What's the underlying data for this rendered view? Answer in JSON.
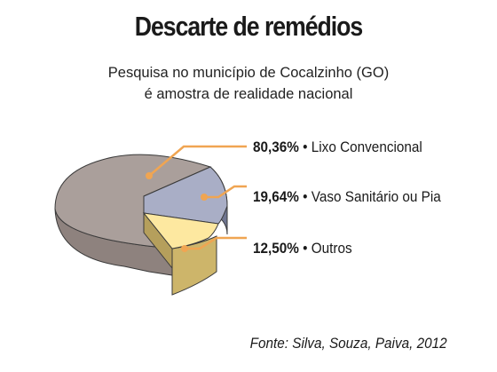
{
  "title": "Descarte de remédios",
  "subtitle": {
    "line1": "Pesquisa no município de Cocalzinho (GO)",
    "line2": "é amostra de realidade nacional"
  },
  "source": "Fonte:  Silva, Souza, Paiva, 2012",
  "chart_data": {
    "type": "pie",
    "title": "Descarte de remédios",
    "slices": [
      {
        "label": "Lixo Convencional",
        "value": 80.36,
        "value_label": "80,36%",
        "color": "#aa9f9b"
      },
      {
        "label": "Vaso Sanitário ou Pia",
        "value": 19.64,
        "value_label": "19,64%",
        "color": "#a9aec6"
      },
      {
        "label": "Outros",
        "value": 12.5,
        "value_label": "12,50%",
        "color": "#fde8a0"
      }
    ],
    "legend": "right",
    "style": "3d-exploded"
  }
}
